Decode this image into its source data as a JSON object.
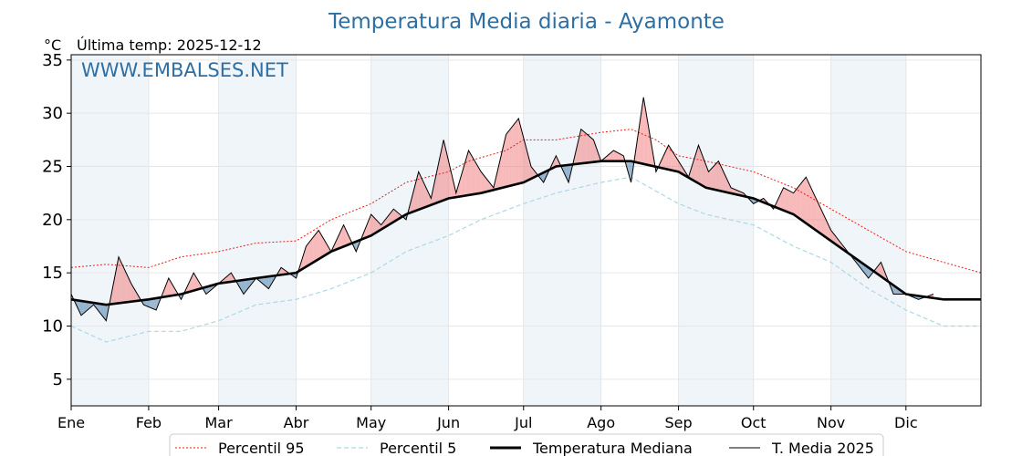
{
  "chart_data": {
    "type": "line",
    "title": "Temperatura Media diaria - Ayamonte",
    "unit_label": "°C",
    "last_temp_text": "Última temp: 2025-12-12",
    "watermark": "WWW.EMBALSES.NET",
    "ylim": [
      2.5,
      35.5
    ],
    "yticks": [
      5,
      10,
      15,
      20,
      25,
      30,
      35
    ],
    "xlim": [
      1,
      365
    ],
    "months": [
      "Ene",
      "Feb",
      "Mar",
      "Abr",
      "May",
      "Jun",
      "Jul",
      "Ago",
      "Sep",
      "Oct",
      "Nov",
      "Dic"
    ],
    "month_start_days": [
      1,
      32,
      60,
      91,
      121,
      152,
      182,
      213,
      244,
      274,
      305,
      335
    ],
    "grid": true,
    "legend_position": "bottom",
    "legend": [
      "Percentil 95",
      "Percentil 5",
      "Temperatura Mediana",
      "T. Media 2025"
    ],
    "colors": {
      "title": "#2e6fa3",
      "p95": "#e8201a",
      "p5": "#add8e6",
      "median": "#000000",
      "media2025": "#000000",
      "above_fill": "#f08080",
      "below_fill": "#4a7fab",
      "shade": "#dde9f5"
    },
    "series": [
      {
        "name": "Percentil 95",
        "x": [
          1,
          15,
          32,
          45,
          60,
          75,
          91,
          105,
          121,
          135,
          152,
          160,
          175,
          182,
          195,
          213,
          225,
          235,
          244,
          255,
          274,
          290,
          305,
          320,
          335,
          350,
          365
        ],
        "values": [
          15.5,
          15.8,
          15.5,
          16.5,
          17.0,
          17.8,
          18.0,
          20.0,
          21.5,
          23.5,
          24.5,
          25.5,
          26.5,
          27.5,
          27.5,
          28.2,
          28.5,
          27.5,
          26.0,
          25.5,
          24.5,
          23.0,
          21.0,
          19.0,
          17.0,
          16.0,
          15.0
        ]
      },
      {
        "name": "Percentil 5",
        "x": [
          1,
          15,
          32,
          45,
          60,
          75,
          91,
          105,
          121,
          135,
          152,
          165,
          182,
          195,
          213,
          225,
          244,
          255,
          274,
          290,
          305,
          320,
          335,
          350,
          365
        ],
        "values": [
          10.0,
          8.5,
          9.5,
          9.5,
          10.5,
          12.0,
          12.5,
          13.5,
          15.0,
          17.0,
          18.5,
          20.0,
          21.5,
          22.5,
          23.5,
          24.0,
          21.5,
          20.5,
          19.5,
          17.5,
          16.0,
          13.5,
          11.5,
          10.0,
          10.0
        ]
      },
      {
        "name": "Temperatura Mediana",
        "x": [
          1,
          15,
          32,
          45,
          60,
          75,
          91,
          105,
          121,
          135,
          152,
          165,
          182,
          195,
          213,
          225,
          244,
          255,
          274,
          290,
          305,
          320,
          335,
          350,
          365
        ],
        "values": [
          12.5,
          12.0,
          12.5,
          13.0,
          14.0,
          14.5,
          15.0,
          17.0,
          18.5,
          20.5,
          22.0,
          22.5,
          23.5,
          25.0,
          25.5,
          25.5,
          24.5,
          23.0,
          22.0,
          20.5,
          18.0,
          15.5,
          13.0,
          12.5,
          12.5
        ]
      },
      {
        "name": "T. Media 2025",
        "x": [
          1,
          5,
          10,
          15,
          20,
          25,
          30,
          35,
          40,
          45,
          50,
          55,
          60,
          65,
          70,
          75,
          80,
          85,
          91,
          95,
          100,
          105,
          110,
          115,
          121,
          125,
          130,
          135,
          140,
          145,
          150,
          155,
          160,
          165,
          170,
          175,
          180,
          185,
          190,
          195,
          200,
          205,
          210,
          213,
          218,
          222,
          225,
          230,
          235,
          240,
          244,
          248,
          252,
          256,
          260,
          265,
          270,
          274,
          278,
          282,
          286,
          290,
          295,
          300,
          305,
          310,
          315,
          320,
          325,
          330,
          335,
          340,
          346
        ],
        "values": [
          13.0,
          11.0,
          12.0,
          10.5,
          16.5,
          14.0,
          12.0,
          11.5,
          14.5,
          12.5,
          15.0,
          13.0,
          14.0,
          15.0,
          13.0,
          14.5,
          13.5,
          15.5,
          14.5,
          17.5,
          19.0,
          17.0,
          19.5,
          17.0,
          20.5,
          19.5,
          21.0,
          20.0,
          24.5,
          22.0,
          27.5,
          22.5,
          26.5,
          24.5,
          23.0,
          28.0,
          29.5,
          25.0,
          23.5,
          26.0,
          23.5,
          28.5,
          27.5,
          25.5,
          26.5,
          26.0,
          23.5,
          31.5,
          24.5,
          27.0,
          25.5,
          24.0,
          27.0,
          24.5,
          25.5,
          23.0,
          22.5,
          21.5,
          22.0,
          21.0,
          23.0,
          22.5,
          24.0,
          21.5,
          19.0,
          17.5,
          16.0,
          14.5,
          16.0,
          13.0,
          13.0,
          12.5,
          13.0
        ]
      }
    ]
  }
}
